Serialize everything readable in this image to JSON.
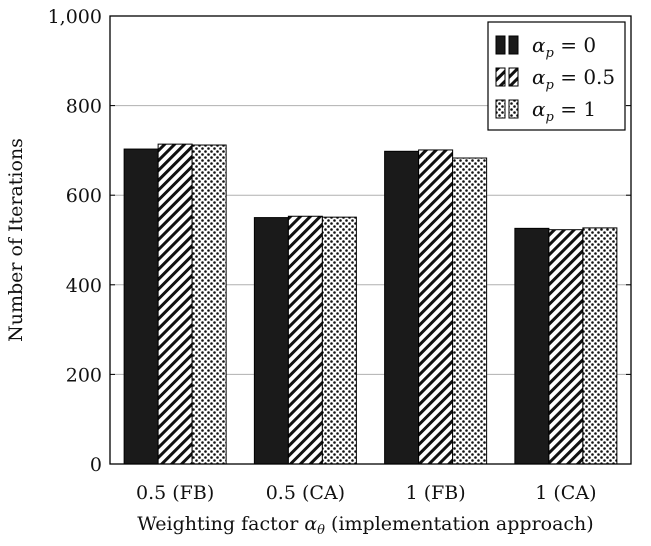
{
  "chart_data": {
    "type": "bar",
    "title": "",
    "xlabel": "Weighting factor αθ (implementation approach)",
    "ylabel": "Number of Iterations",
    "categories": [
      "0.5 (FB)",
      "0.5 (CA)",
      "1 (FB)",
      "1 (CA)"
    ],
    "series": [
      {
        "name": "αp = 0",
        "values": [
          703,
          550,
          698,
          526
        ],
        "pattern": "solid"
      },
      {
        "name": "αp = 0.5",
        "values": [
          714,
          553,
          701,
          523
        ],
        "pattern": "diagonal-hatch"
      },
      {
        "name": "αp = 1",
        "values": [
          712,
          551,
          683,
          527
        ],
        "pattern": "dots"
      }
    ],
    "ylim": [
      0,
      1000
    ],
    "yticks": [
      0,
      200,
      400,
      600,
      800,
      1000
    ],
    "ytick_labels": [
      "0",
      "200",
      "400",
      "600",
      "800",
      "1,000"
    ],
    "grid": "horizontal",
    "legend_position": "top-right",
    "colors": {
      "bar_fill": "#1a1a1a",
      "grid": "#b0b0b0",
      "frame": "#000000",
      "background": "#ffffff"
    }
  }
}
